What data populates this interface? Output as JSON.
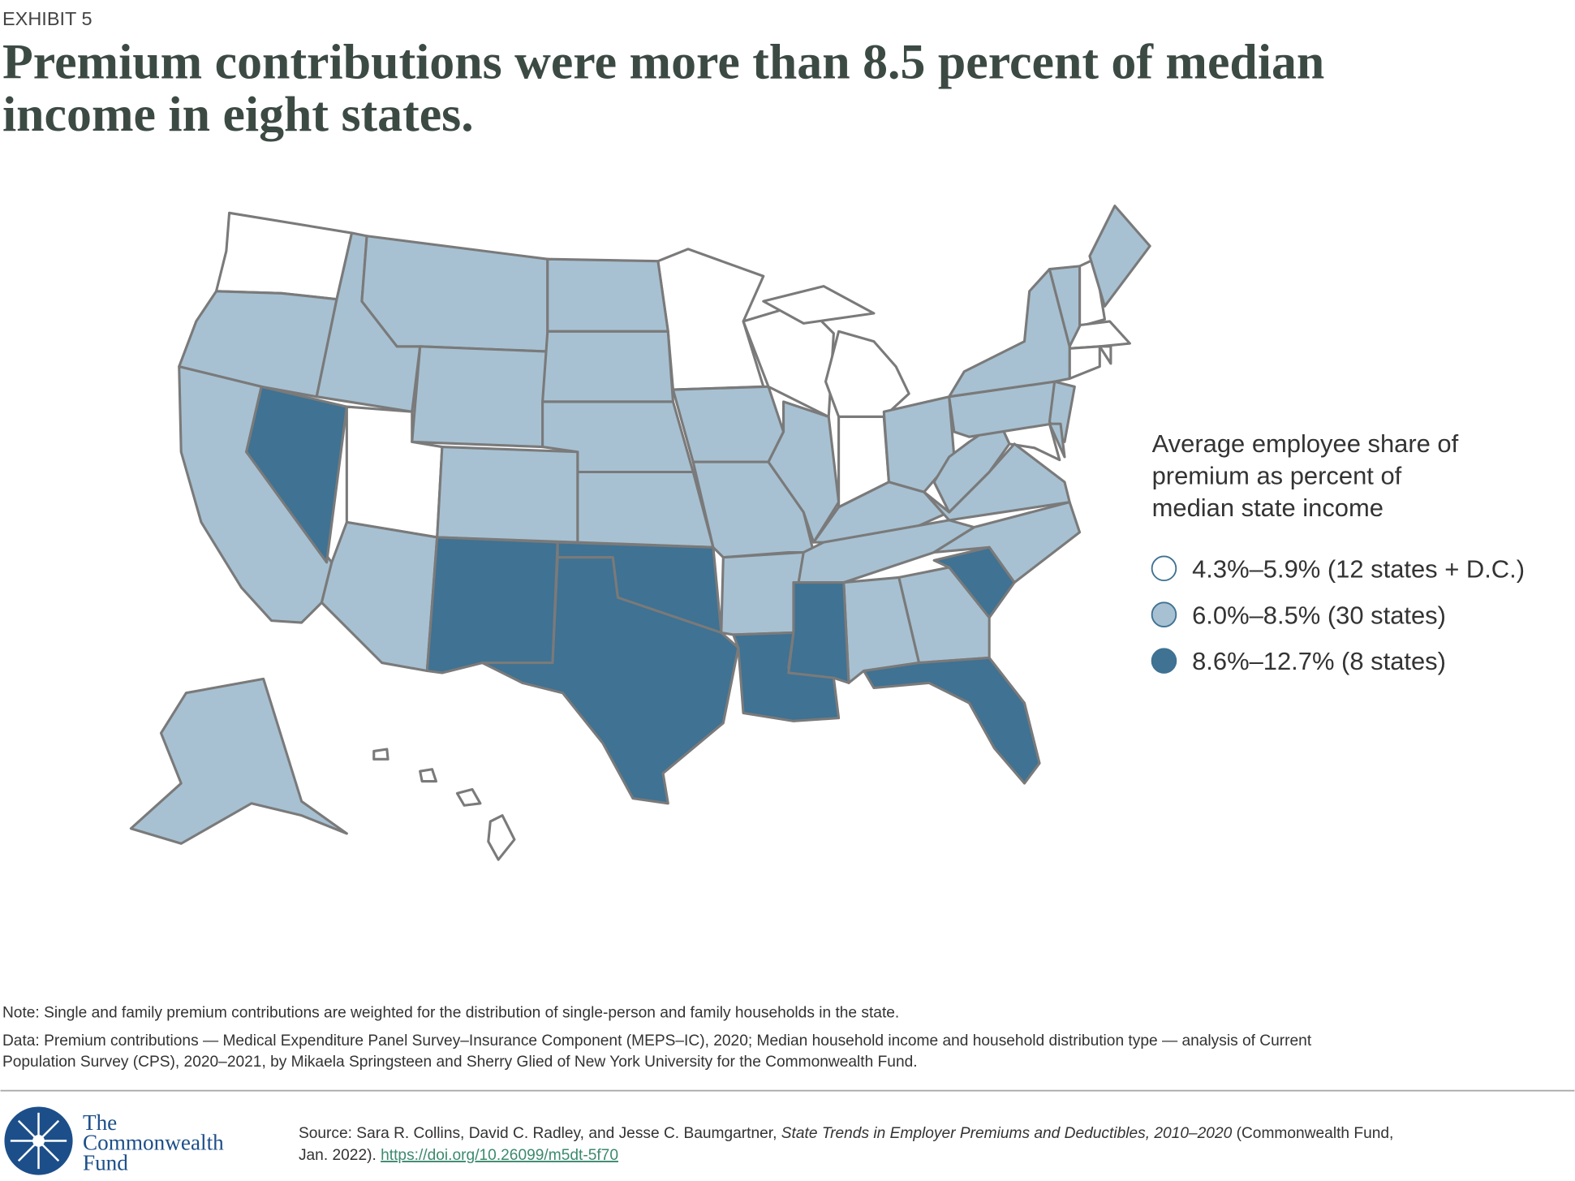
{
  "exhibit": "EXHIBIT 5",
  "title": [
    "Premium contributions were more than 8.5 percent of median",
    "income in eight states."
  ],
  "legend": {
    "title": [
      "Average employee share of",
      "premium as percent of",
      "median state income"
    ],
    "items": [
      {
        "label": "4.3%–5.9% (12 states + D.C.)",
        "color": "#ffffff"
      },
      {
        "label": "6.0%–8.5% (30 states)",
        "color": "#a7c1d2"
      },
      {
        "label": "8.6%–12.7% (8 states)",
        "color": "#3f7293"
      }
    ]
  },
  "note": "Note: Single and family premium contributions are weighted for the distribution of single-person and family households in the state.",
  "data_lines": [
    "Data: Premium contributions — Medical Expenditure Panel Survey–Insurance Component (MEPS–IC), 2020; Median household income and household distribution type — analysis of Current",
    "Population Survey (CPS), 2020–2021, by Mikaela Springsteen and Sherry Glied of New York University for the Commonwealth Fund."
  ],
  "source": {
    "prefix": "Source: Sara R. Collins, David C. Radley, and Jesse C. Baumgartner, ",
    "title": "State Trends in Employer Premiums and Deductibles, 2010–2020",
    "suffix": " (Commonwealth Fund,",
    "line2": "Jan. 2022). ",
    "link": "https://doi.org/10.26099/m5dt-5f70"
  },
  "logo": [
    "The",
    "Commonwealth",
    "Fund"
  ]
}
